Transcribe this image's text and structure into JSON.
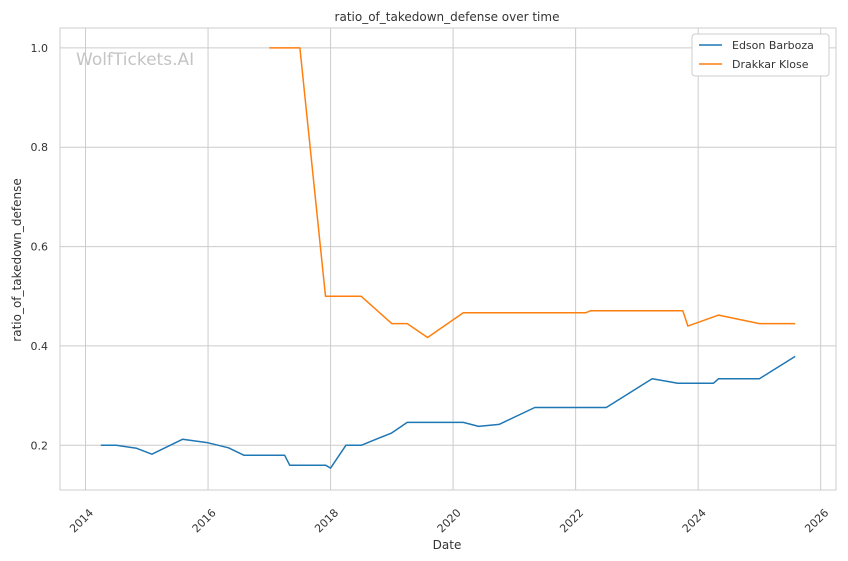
{
  "chart_data": {
    "type": "line",
    "title": "ratio_of_takedown_defense over time",
    "xlabel": "Date",
    "ylabel": "ratio_of_takedown_defense",
    "watermark": "WolfTickets.AI",
    "x_ticks": [
      "2014",
      "2016",
      "2018",
      "2020",
      "2022",
      "2024",
      "2026"
    ],
    "y_ticks": [
      "0.2",
      "0.4",
      "0.6",
      "0.8",
      "1.0"
    ],
    "xlim": [
      "2013-08-01",
      "2026-04-01"
    ],
    "ylim": [
      0.11,
      1.04
    ],
    "grid": true,
    "legend_position": "top-right",
    "series": [
      {
        "name": "Edson Barboza",
        "color": "#1f77b4",
        "points": [
          [
            "2014-04-01",
            0.2
          ],
          [
            "2014-07-01",
            0.2
          ],
          [
            "2014-11-01",
            0.194
          ],
          [
            "2015-02-01",
            0.182
          ],
          [
            "2015-08-01",
            0.212
          ],
          [
            "2016-01-01",
            0.205
          ],
          [
            "2016-05-01",
            0.195
          ],
          [
            "2016-08-01",
            0.18
          ],
          [
            "2017-04-01",
            0.18
          ],
          [
            "2017-05-01",
            0.16
          ],
          [
            "2017-12-01",
            0.16
          ],
          [
            "2018-01-01",
            0.154
          ],
          [
            "2018-04-01",
            0.2
          ],
          [
            "2018-07-01",
            0.2
          ],
          [
            "2019-01-01",
            0.225
          ],
          [
            "2019-04-01",
            0.246
          ],
          [
            "2020-03-01",
            0.246
          ],
          [
            "2020-06-01",
            0.238
          ],
          [
            "2020-10-01",
            0.242
          ],
          [
            "2021-05-01",
            0.276
          ],
          [
            "2022-07-01",
            0.276
          ],
          [
            "2023-04-01",
            0.334
          ],
          [
            "2023-09-01",
            0.325
          ],
          [
            "2024-04-01",
            0.325
          ],
          [
            "2024-05-01",
            0.334
          ],
          [
            "2025-01-01",
            0.334
          ],
          [
            "2025-08-01",
            0.379
          ]
        ]
      },
      {
        "name": "Drakkar Klose",
        "color": "#ff7f0e",
        "points": [
          [
            "2017-01-01",
            1.0
          ],
          [
            "2017-07-01",
            1.0
          ],
          [
            "2017-12-01",
            0.5
          ],
          [
            "2018-07-01",
            0.5
          ],
          [
            "2019-01-01",
            0.445
          ],
          [
            "2019-04-01",
            0.445
          ],
          [
            "2019-08-01",
            0.417
          ],
          [
            "2020-03-01",
            0.467
          ],
          [
            "2022-03-01",
            0.467
          ],
          [
            "2022-04-01",
            0.471
          ],
          [
            "2023-10-01",
            0.471
          ],
          [
            "2023-11-01",
            0.44
          ],
          [
            "2024-05-01",
            0.462
          ],
          [
            "2025-01-01",
            0.445
          ],
          [
            "2025-08-01",
            0.445
          ]
        ]
      }
    ]
  }
}
